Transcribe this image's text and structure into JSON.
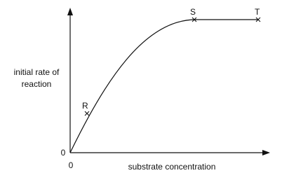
{
  "axes": {
    "y_label": [
      "initial rate of",
      "reaction"
    ],
    "x_label": "substrate concentration",
    "y_origin": "0",
    "x_origin": "0"
  },
  "points": [
    {
      "label": "R"
    },
    {
      "label": "S"
    },
    {
      "label": "T"
    }
  ]
}
